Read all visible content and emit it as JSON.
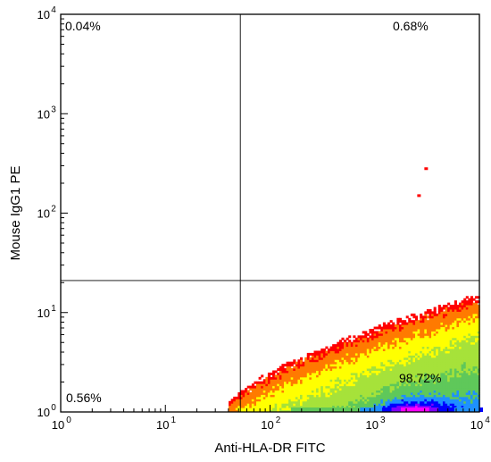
{
  "chart_data": {
    "type": "scatter",
    "subtype": "flow-cytometry-density-dot-plot",
    "title": "",
    "xlabel": "Anti-HLA-DR FITC",
    "ylabel": "Mouse IgG1 PE",
    "xscale": "log",
    "yscale": "log",
    "xlim": [
      1,
      10000
    ],
    "ylim": [
      1,
      10000
    ],
    "x_ticks": [
      {
        "value": 1,
        "base": "10",
        "exp": "0"
      },
      {
        "value": 10,
        "base": "10",
        "exp": "1"
      },
      {
        "value": 100,
        "base": "10",
        "exp": "2"
      },
      {
        "value": 1000,
        "base": "10",
        "exp": "3"
      },
      {
        "value": 10000,
        "base": "10",
        "exp": "4"
      }
    ],
    "y_ticks": [
      {
        "value": 1,
        "base": "10",
        "exp": "0"
      },
      {
        "value": 10,
        "base": "10",
        "exp": "1"
      },
      {
        "value": 100,
        "base": "10",
        "exp": "2"
      },
      {
        "value": 1000,
        "base": "10",
        "exp": "3"
      },
      {
        "value": 10000,
        "base": "10",
        "exp": "4"
      }
    ],
    "gates": {
      "x": 52,
      "y": 21
    },
    "quadrants": [
      {
        "id": "upper-left",
        "label": "0.04%",
        "value": 0.04
      },
      {
        "id": "upper-right",
        "label": "0.68%",
        "value": 0.68
      },
      {
        "id": "lower-left",
        "label": "0.56%",
        "value": 0.56
      },
      {
        "id": "lower-right",
        "label": "98.72%",
        "value": 98.72
      }
    ],
    "density_colors": [
      "#ff0000",
      "#ff7a00",
      "#ffff00",
      "#a6e23a",
      "#5fc85a",
      "#1e90ff",
      "#0000ff",
      "#8000ff",
      "#ff00ff"
    ],
    "outlier_points": [
      {
        "x": 3100,
        "y": 280
      },
      {
        "x": 2650,
        "y": 150
      }
    ],
    "grid": false,
    "legend": "none"
  }
}
